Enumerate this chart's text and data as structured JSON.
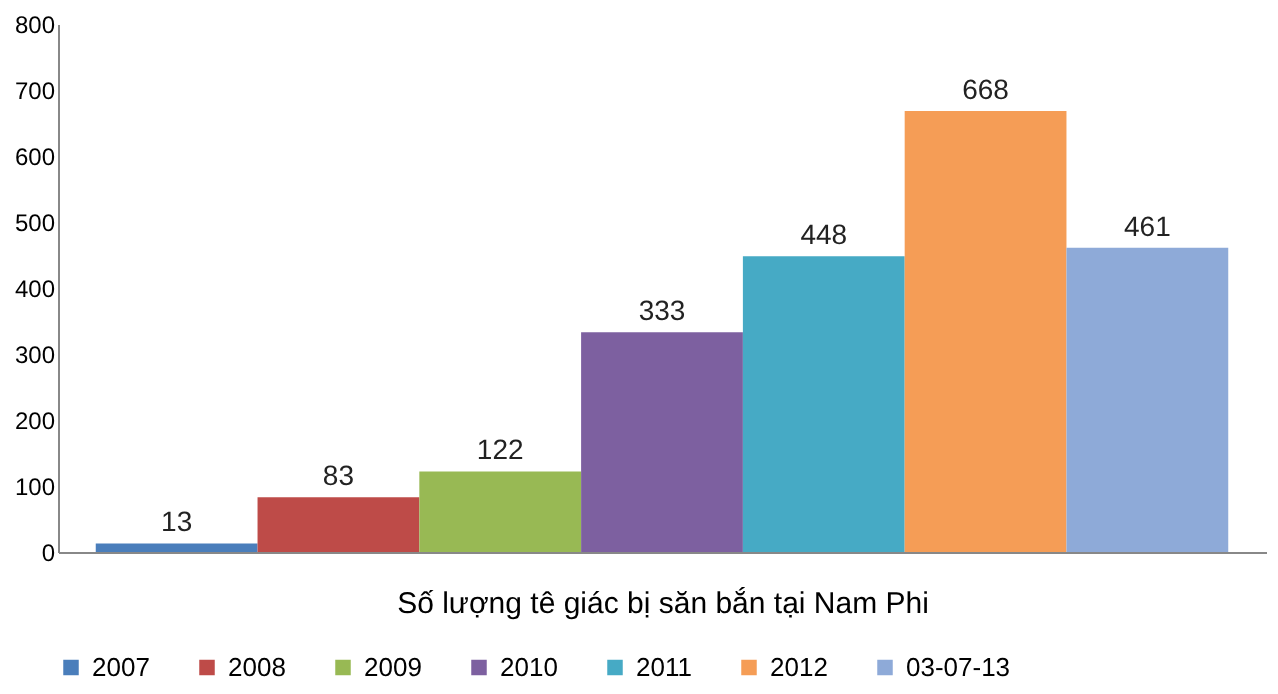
{
  "chart_data": {
    "type": "bar",
    "xlabel": "Số lượng tê giác bị săn bắn tại Nam Phi",
    "categories": [
      null
    ],
    "series": [
      {
        "name": "2007",
        "color": "#4a7ebb",
        "values": [
          13
        ]
      },
      {
        "name": "2008",
        "color": "#be4b48",
        "values": [
          83
        ]
      },
      {
        "name": "2009",
        "color": "#98b954",
        "values": [
          122
        ]
      },
      {
        "name": "2010",
        "color": "#7d60a0",
        "values": [
          333
        ]
      },
      {
        "name": "2011",
        "color": "#46aac5",
        "values": [
          448
        ]
      },
      {
        "name": "2012",
        "color": "#f59d56",
        "values": [
          668
        ]
      },
      {
        "name": "03-07-13",
        "color": "#8eaad8",
        "values": [
          461
        ]
      }
    ],
    "ylim": [
      0,
      800
    ],
    "yticks": [
      0,
      100,
      200,
      300,
      400,
      500,
      600,
      700,
      800
    ],
    "grid": false,
    "data_labels": true,
    "legend": "bottom"
  }
}
